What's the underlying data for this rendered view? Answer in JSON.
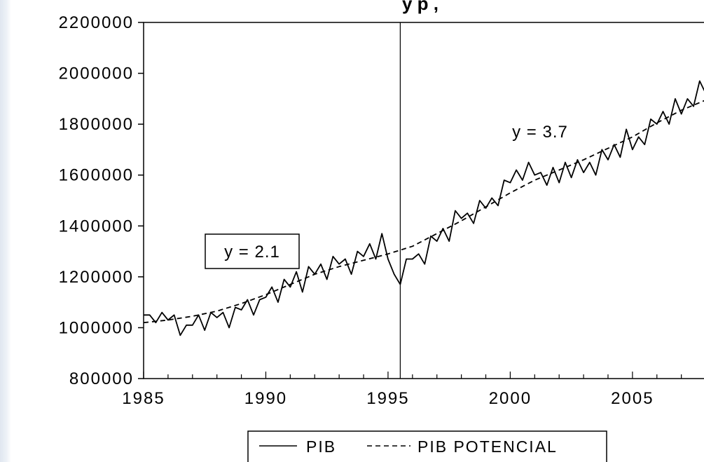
{
  "chart_data": {
    "type": "line",
    "title_fragment": "y p     ,",
    "xlabel": "",
    "ylabel": "",
    "xlim": [
      1985,
      2008.5
    ],
    "ylim": [
      800000,
      2200000
    ],
    "x_ticks": [
      1985,
      1990,
      1995,
      2000,
      2005
    ],
    "y_ticks": [
      800000,
      1000000,
      1200000,
      1400000,
      1600000,
      1800000,
      2000000,
      2200000
    ],
    "grid": false,
    "legend_position": "bottom",
    "vertical_line_x": 1995.5,
    "annotations": [
      {
        "text": "y = 2.1",
        "boxed": true
      },
      {
        "text": "y = 3.7",
        "boxed": false
      }
    ],
    "series": [
      {
        "name": "PIB",
        "style": "solid",
        "color": "#000000",
        "x": [
          1985.0,
          1985.25,
          1985.5,
          1985.75,
          1986.0,
          1986.25,
          1986.5,
          1986.75,
          1987.0,
          1987.25,
          1987.5,
          1987.75,
          1988.0,
          1988.25,
          1988.5,
          1988.75,
          1989.0,
          1989.25,
          1989.5,
          1989.75,
          1990.0,
          1990.25,
          1990.5,
          1990.75,
          1991.0,
          1991.25,
          1991.5,
          1991.75,
          1992.0,
          1992.25,
          1992.5,
          1992.75,
          1993.0,
          1993.25,
          1993.5,
          1993.75,
          1994.0,
          1994.25,
          1994.5,
          1994.75,
          1995.0,
          1995.25,
          1995.5,
          1995.75,
          1996.0,
          1996.25,
          1996.5,
          1996.75,
          1997.0,
          1997.25,
          1997.5,
          1997.75,
          1998.0,
          1998.25,
          1998.5,
          1998.75,
          1999.0,
          1999.25,
          1999.5,
          1999.75,
          2000.0,
          2000.25,
          2000.5,
          2000.75,
          2001.0,
          2001.25,
          2001.5,
          2001.75,
          2002.0,
          2002.25,
          2002.5,
          2002.75,
          2003.0,
          2003.25,
          2003.5,
          2003.75,
          2004.0,
          2004.25,
          2004.5,
          2004.75,
          2005.0,
          2005.25,
          2005.5,
          2005.75,
          2006.0,
          2006.25,
          2006.5,
          2006.75,
          2007.0,
          2007.25,
          2007.5,
          2007.75,
          2008.0,
          2008.25,
          2008.5
        ],
        "y": [
          1050000,
          1050000,
          1020000,
          1060000,
          1030000,
          1050000,
          970000,
          1010000,
          1010000,
          1050000,
          990000,
          1060000,
          1040000,
          1060000,
          1000000,
          1080000,
          1070000,
          1110000,
          1050000,
          1110000,
          1120000,
          1160000,
          1100000,
          1190000,
          1160000,
          1220000,
          1140000,
          1240000,
          1210000,
          1250000,
          1190000,
          1280000,
          1250000,
          1270000,
          1210000,
          1300000,
          1280000,
          1330000,
          1270000,
          1370000,
          1270000,
          1210000,
          1170000,
          1270000,
          1270000,
          1290000,
          1250000,
          1360000,
          1340000,
          1390000,
          1340000,
          1460000,
          1430000,
          1450000,
          1410000,
          1500000,
          1470000,
          1510000,
          1480000,
          1580000,
          1570000,
          1620000,
          1580000,
          1650000,
          1600000,
          1610000,
          1560000,
          1630000,
          1570000,
          1650000,
          1590000,
          1660000,
          1610000,
          1650000,
          1600000,
          1700000,
          1660000,
          1720000,
          1670000,
          1780000,
          1700000,
          1750000,
          1720000,
          1820000,
          1800000,
          1850000,
          1800000,
          1900000,
          1840000,
          1900000,
          1870000,
          1970000,
          1920000,
          1950000,
          1900000
        ]
      },
      {
        "name": "PIB POTENCIAL",
        "style": "dashed",
        "color": "#000000",
        "x": [
          1985,
          1986,
          1987,
          1988,
          1989,
          1990,
          1991,
          1992,
          1993,
          1994,
          1995,
          1996,
          1997,
          1998,
          1999,
          2000,
          2001,
          2002,
          2003,
          2004,
          2005,
          2006,
          2007,
          2008,
          2008.5
        ],
        "y": [
          1020000,
          1030000,
          1045000,
          1065000,
          1095000,
          1130000,
          1170000,
          1210000,
          1240000,
          1265000,
          1290000,
          1320000,
          1370000,
          1420000,
          1475000,
          1530000,
          1580000,
          1620000,
          1660000,
          1705000,
          1750000,
          1805000,
          1855000,
          1895000,
          1910000
        ]
      }
    ]
  }
}
